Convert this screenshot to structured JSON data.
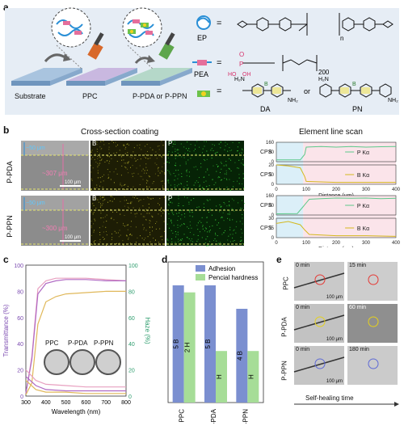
{
  "panels": {
    "a": {
      "letter": "a",
      "stage_labels": [
        "Substrate",
        "PPC",
        "P-PDA or P-PPN"
      ],
      "legend": {
        "ep_label": "EP",
        "ep_n": "n",
        "pea_label": "PEA",
        "pea_repeat": "200",
        "pea_p": "P",
        "pea_oh1": "HO",
        "pea_oh2": "OH",
        "pea_o": "O",
        "eq": "=",
        "da_label": "DA",
        "or": "or",
        "pn_label": "PN",
        "b_atom": "B",
        "nh2": "NH₂",
        "h2n": "H₂N"
      }
    },
    "b": {
      "letter": "b",
      "section_title": "Cross-section coating",
      "linescan_title": "Element line scan",
      "rows": [
        {
          "name": "P-PDA",
          "thickness": "~307 μm",
          "topcoat": "~50 μm",
          "scalebar": "100 μm",
          "map_b": "B",
          "map_p": "P"
        },
        {
          "name": "P-PPN",
          "thickness": "~300 μm",
          "topcoat": "~50 μm",
          "scalebar": "100 μm",
          "map_b": "B",
          "map_p": "P"
        }
      ]
    },
    "c": {
      "letter": "c",
      "labels": [
        "PPC",
        "P-PDA",
        "P-PPN"
      ]
    },
    "d": {
      "letter": "d"
    },
    "e": {
      "letter": "e",
      "row_labels": [
        "PPC",
        "P-PDA",
        "P-PPN"
      ],
      "times": [
        [
          "0 min",
          "15 min"
        ],
        [
          "0 min",
          "60 min"
        ],
        [
          "0 min",
          "180 min"
        ]
      ],
      "scalebar": "100 μm",
      "axis_label": "Self-healing time"
    }
  },
  "chart_data": [
    {
      "type": "line",
      "panel": "b-top",
      "xlabel": "Distance (μm)",
      "ylabel": "CPS",
      "xlim": [
        0,
        400
      ],
      "xticks": [
        0,
        100,
        200,
        300,
        400
      ],
      "series": [
        {
          "name": "P Kα",
          "color": "#5cc98a",
          "ylim": [
            0,
            160
          ],
          "yticks": [
            0,
            80,
            160
          ],
          "x": [
            0,
            80,
            95,
            100,
            150,
            200,
            250,
            300,
            350,
            400
          ],
          "y": [
            15,
            15,
            60,
            120,
            125,
            120,
            125,
            120,
            123,
            125
          ]
        },
        {
          "name": "B Kα",
          "color": "#d4b81e",
          "ylim": [
            0,
            20
          ],
          "yticks": [
            0,
            10,
            20
          ],
          "x": [
            0,
            40,
            80,
            95,
            100,
            200,
            300,
            400
          ],
          "y": [
            20,
            19,
            17,
            8,
            3,
            2,
            2,
            2
          ]
        }
      ]
    },
    {
      "type": "line",
      "panel": "b-bottom",
      "xlabel": "Distance (μm)",
      "ylabel": "CPS",
      "xlim": [
        0,
        400
      ],
      "xticks": [
        0,
        100,
        200,
        300,
        400
      ],
      "series": [
        {
          "name": "P Kα",
          "color": "#5cc98a",
          "ylim": [
            0,
            160
          ],
          "yticks": [
            0,
            80,
            160
          ],
          "x": [
            0,
            70,
            90,
            110,
            150,
            200,
            250,
            300,
            350,
            400
          ],
          "y": [
            10,
            12,
            70,
            130,
            135,
            140,
            138,
            140,
            135,
            138
          ]
        },
        {
          "name": "B Kα",
          "color": "#d4b81e",
          "ylim": [
            0,
            30
          ],
          "yticks": [
            0,
            15,
            30
          ],
          "x": [
            0,
            40,
            80,
            95,
            110,
            200,
            300,
            400
          ],
          "y": [
            22,
            25,
            20,
            12,
            5,
            3,
            3,
            2
          ]
        }
      ]
    },
    {
      "type": "line",
      "panel": "c",
      "xlabel": "Wavelength (nm)",
      "ylabel": "Transmittance (%)",
      "y2label": "Haze (%)",
      "xlim": [
        300,
        800
      ],
      "ylim": [
        0,
        100
      ],
      "y2lim": [
        0,
        100
      ],
      "xticks": [
        300,
        400,
        500,
        600,
        700,
        800
      ],
      "yticks": [
        0,
        20,
        40,
        60,
        80,
        100
      ],
      "series": [
        {
          "color": "#e8a0c0",
          "axis": "left",
          "x": [
            300,
            330,
            360,
            400,
            450,
            500,
            600,
            700,
            800
          ],
          "y": [
            2,
            30,
            82,
            88,
            90,
            90,
            90,
            89,
            88
          ]
        },
        {
          "color": "#b06ac4",
          "axis": "left",
          "x": [
            300,
            330,
            360,
            400,
            450,
            500,
            600,
            700,
            800
          ],
          "y": [
            2,
            28,
            78,
            86,
            88,
            89,
            89,
            88,
            88
          ]
        },
        {
          "color": "#e0b85a",
          "axis": "left",
          "x": [
            300,
            330,
            360,
            400,
            450,
            500,
            600,
            700,
            800
          ],
          "y": [
            1,
            10,
            55,
            72,
            76,
            78,
            79,
            80,
            80
          ]
        },
        {
          "color": "#e8a0c0",
          "axis": "right",
          "x": [
            300,
            350,
            400,
            500,
            600,
            700,
            800
          ],
          "y": [
            20,
            12,
            9,
            8,
            7,
            7,
            7
          ]
        },
        {
          "color": "#b06ac4",
          "axis": "right",
          "x": [
            300,
            350,
            400,
            500,
            600,
            700,
            800
          ],
          "y": [
            15,
            8,
            5,
            4,
            4,
            4,
            4
          ]
        },
        {
          "color": "#e0b85a",
          "axis": "right",
          "x": [
            300,
            350,
            400,
            500,
            600,
            700,
            800
          ],
          "y": [
            12,
            5,
            3,
            3,
            2,
            2,
            2
          ]
        }
      ]
    },
    {
      "type": "bar",
      "panel": "d",
      "categories": [
        "PPC",
        "P-PDA",
        "P-PPN"
      ],
      "legend_position": "top-right",
      "series": [
        {
          "name": "Adhesion",
          "color": "#7b8fd0",
          "values": [
            5,
            5,
            4
          ],
          "labels": [
            "5 B",
            "5 B",
            "4 B"
          ]
        },
        {
          "name": "Pencial hardness",
          "color": "#a6dd97",
          "values": [
            4.7,
            2.2,
            2.2
          ],
          "labels": [
            "2 H",
            "H",
            "H"
          ]
        }
      ]
    }
  ]
}
